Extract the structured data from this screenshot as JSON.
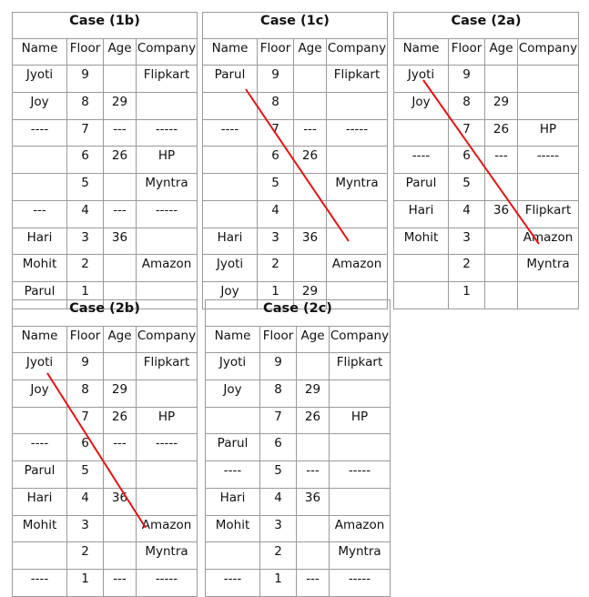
{
  "line_color": "#e11414",
  "headers": [
    "Name",
    "Floor",
    "Age",
    "Company"
  ],
  "tables": [
    {
      "title": "Case (1b)",
      "rows": [
        [
          "Jyoti",
          "9",
          "",
          "Flipkart"
        ],
        [
          "Joy",
          "8",
          "29",
          ""
        ],
        [
          "----",
          "7",
          "---",
          "-----"
        ],
        [
          "",
          "6",
          "26",
          "HP"
        ],
        [
          "",
          "5",
          "",
          "Myntra"
        ],
        [
          "---",
          "4",
          "---",
          "-----"
        ],
        [
          "Hari",
          "3",
          "36",
          ""
        ],
        [
          "Mohit",
          "2",
          "",
          "Amazon"
        ],
        [
          "Parul",
          "1",
          "",
          ""
        ]
      ],
      "crossed_out": false
    },
    {
      "title": "Case (1c)",
      "rows": [
        [
          "Parul",
          "9",
          "",
          "Flipkart"
        ],
        [
          "",
          "8",
          "",
          ""
        ],
        [
          "----",
          "7",
          "---",
          "-----"
        ],
        [
          "",
          "6",
          "26",
          ""
        ],
        [
          "",
          "5",
          "",
          "Myntra"
        ],
        [
          "",
          "4",
          "",
          ""
        ],
        [
          "Hari",
          "3",
          "36",
          ""
        ],
        [
          "Jyoti",
          "2",
          "",
          "Amazon"
        ],
        [
          "Joy",
          "1",
          "29",
          ""
        ]
      ],
      "crossed_out": true
    },
    {
      "title": "Case (2a)",
      "rows": [
        [
          "Jyoti",
          "9",
          "",
          ""
        ],
        [
          "Joy",
          "8",
          "29",
          ""
        ],
        [
          "",
          "7",
          "26",
          "HP"
        ],
        [
          "----",
          "6",
          "---",
          "-----"
        ],
        [
          "Parul",
          "5",
          "",
          ""
        ],
        [
          "Hari",
          "4",
          "36",
          "Flipkart"
        ],
        [
          "Mohit",
          "3",
          "",
          "Amazon"
        ],
        [
          "",
          "2",
          "",
          "Myntra"
        ],
        [
          "",
          "1",
          "",
          ""
        ]
      ],
      "crossed_out": true
    },
    {
      "title": "Case (2b)",
      "rows": [
        [
          "Jyoti",
          "9",
          "",
          "Flipkart"
        ],
        [
          "Joy",
          "8",
          "29",
          ""
        ],
        [
          "",
          "7",
          "26",
          "HP"
        ],
        [
          "----",
          "6",
          "---",
          "-----"
        ],
        [
          "Parul",
          "5",
          "",
          ""
        ],
        [
          "Hari",
          "4",
          "36",
          ""
        ],
        [
          "Mohit",
          "3",
          "",
          "Amazon"
        ],
        [
          "",
          "2",
          "",
          "Myntra"
        ],
        [
          "----",
          "1",
          "---",
          "-----"
        ]
      ],
      "crossed_out": true
    },
    {
      "title": "Case (2c)",
      "rows": [
        [
          "Jyoti",
          "9",
          "",
          "Flipkart"
        ],
        [
          "Joy",
          "8",
          "29",
          ""
        ],
        [
          "",
          "7",
          "26",
          "HP"
        ],
        [
          "Parul",
          "6",
          "",
          ""
        ],
        [
          "----",
          "5",
          "---",
          "-----"
        ],
        [
          "Hari",
          "4",
          "36",
          ""
        ],
        [
          "Mohit",
          "3",
          "",
          "Amazon"
        ],
        [
          "",
          "2",
          "",
          "Myntra"
        ],
        [
          "----",
          "1",
          "---",
          "-----"
        ]
      ],
      "crossed_out": false
    }
  ]
}
